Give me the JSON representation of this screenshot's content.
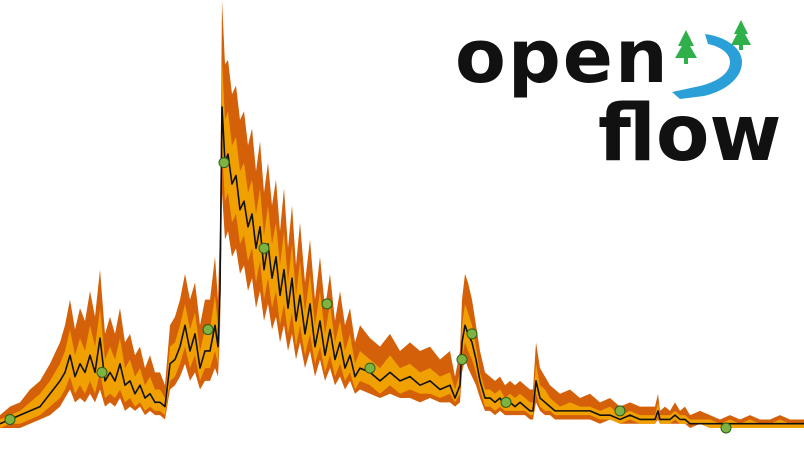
{
  "logo": {
    "line1": "open",
    "line2": "flow",
    "text_color": "#111111",
    "river_color": "#2a9fd8",
    "tree_color": "#2fb04a"
  },
  "chart_data": {
    "type": "area",
    "xlabel": "",
    "ylabel": "",
    "grid": false,
    "legend": "none",
    "ylim": [
      0,
      1
    ],
    "series": [
      {
        "role": "simulation-ensemble-outer",
        "color": "#d4600a",
        "x": [
          0,
          10,
          20,
          30,
          40,
          50,
          60,
          65,
          70,
          75,
          80,
          85,
          90,
          95,
          100,
          105,
          110,
          115,
          120,
          125,
          130,
          135,
          140,
          145,
          150,
          155,
          160,
          165,
          170,
          175,
          180,
          185,
          190,
          195,
          200,
          205,
          210,
          215,
          218,
          220,
          222,
          225,
          228,
          232,
          236,
          240,
          244,
          248,
          252,
          256,
          260,
          264,
          268,
          272,
          276,
          280,
          284,
          288,
          292,
          296,
          300,
          305,
          310,
          315,
          320,
          325,
          330,
          335,
          340,
          345,
          350,
          355,
          360,
          370,
          380,
          390,
          400,
          410,
          420,
          430,
          440,
          450,
          455,
          460,
          462,
          465,
          468,
          472,
          476,
          480,
          485,
          490,
          495,
          500,
          505,
          510,
          515,
          520,
          525,
          530,
          533,
          536,
          540,
          545,
          550,
          555,
          560,
          570,
          580,
          590,
          600,
          610,
          620,
          630,
          640,
          650,
          655,
          658,
          660,
          665,
          670,
          675,
          680,
          685,
          690,
          700,
          710,
          720,
          730,
          740,
          750,
          760,
          770,
          780,
          790,
          800,
          804
        ],
        "upper": [
          0.03,
          0.05,
          0.06,
          0.09,
          0.11,
          0.15,
          0.2,
          0.24,
          0.3,
          0.23,
          0.28,
          0.25,
          0.32,
          0.26,
          0.37,
          0.22,
          0.26,
          0.22,
          0.28,
          0.2,
          0.22,
          0.17,
          0.19,
          0.14,
          0.17,
          0.13,
          0.13,
          0.1,
          0.24,
          0.26,
          0.3,
          0.36,
          0.3,
          0.34,
          0.24,
          0.3,
          0.3,
          0.4,
          0.3,
          0.47,
          1.0,
          0.85,
          0.86,
          0.78,
          0.8,
          0.72,
          0.74,
          0.66,
          0.7,
          0.6,
          0.67,
          0.55,
          0.62,
          0.52,
          0.58,
          0.46,
          0.56,
          0.42,
          0.52,
          0.38,
          0.48,
          0.34,
          0.44,
          0.3,
          0.4,
          0.28,
          0.36,
          0.25,
          0.32,
          0.24,
          0.28,
          0.2,
          0.24,
          0.21,
          0.19,
          0.22,
          0.18,
          0.2,
          0.18,
          0.19,
          0.16,
          0.18,
          0.12,
          0.18,
          0.3,
          0.36,
          0.34,
          0.3,
          0.24,
          0.18,
          0.13,
          0.12,
          0.11,
          0.12,
          0.1,
          0.11,
          0.1,
          0.11,
          0.1,
          0.09,
          0.09,
          0.2,
          0.14,
          0.12,
          0.1,
          0.09,
          0.08,
          0.09,
          0.07,
          0.08,
          0.06,
          0.07,
          0.05,
          0.06,
          0.05,
          0.05,
          0.05,
          0.08,
          0.04,
          0.05,
          0.04,
          0.06,
          0.04,
          0.05,
          0.03,
          0.04,
          0.03,
          0.02,
          0.03,
          0.02,
          0.03,
          0.02,
          0.02,
          0.03,
          0.02,
          0.02,
          0.02
        ],
        "lower": [
          0.0,
          0.0,
          0.0,
          0.01,
          0.02,
          0.03,
          0.05,
          0.07,
          0.09,
          0.06,
          0.07,
          0.06,
          0.08,
          0.06,
          0.09,
          0.05,
          0.06,
          0.05,
          0.07,
          0.04,
          0.05,
          0.04,
          0.05,
          0.03,
          0.04,
          0.03,
          0.03,
          0.02,
          0.09,
          0.1,
          0.12,
          0.15,
          0.11,
          0.13,
          0.09,
          0.11,
          0.11,
          0.14,
          0.12,
          0.22,
          0.55,
          0.44,
          0.46,
          0.4,
          0.42,
          0.36,
          0.38,
          0.32,
          0.35,
          0.28,
          0.32,
          0.25,
          0.29,
          0.23,
          0.26,
          0.2,
          0.24,
          0.18,
          0.22,
          0.16,
          0.2,
          0.14,
          0.18,
          0.12,
          0.16,
          0.11,
          0.14,
          0.1,
          0.12,
          0.09,
          0.11,
          0.08,
          0.09,
          0.08,
          0.07,
          0.08,
          0.07,
          0.07,
          0.06,
          0.07,
          0.06,
          0.06,
          0.05,
          0.06,
          0.13,
          0.16,
          0.14,
          0.12,
          0.1,
          0.07,
          0.04,
          0.04,
          0.03,
          0.04,
          0.03,
          0.03,
          0.03,
          0.03,
          0.03,
          0.02,
          0.02,
          0.06,
          0.04,
          0.03,
          0.03,
          0.02,
          0.02,
          0.02,
          0.02,
          0.02,
          0.01,
          0.02,
          0.01,
          0.01,
          0.01,
          0.01,
          0.01,
          0.02,
          0.01,
          0.01,
          0.01,
          0.01,
          0.01,
          0.01,
          0.0,
          0.01,
          0.0,
          0.0,
          0.0,
          0.0,
          0.0,
          0.0,
          0.0,
          0.0,
          0.0,
          0.0,
          0.0
        ]
      },
      {
        "role": "simulation-ensemble-inner",
        "color": "#f0a000",
        "x": [
          0,
          10,
          20,
          30,
          40,
          50,
          60,
          65,
          70,
          75,
          80,
          85,
          90,
          95,
          100,
          105,
          110,
          115,
          120,
          125,
          130,
          135,
          140,
          145,
          150,
          155,
          160,
          165,
          170,
          175,
          180,
          185,
          190,
          195,
          200,
          205,
          210,
          215,
          218,
          220,
          222,
          225,
          228,
          232,
          236,
          240,
          244,
          248,
          252,
          256,
          260,
          264,
          268,
          272,
          276,
          280,
          284,
          288,
          292,
          296,
          300,
          305,
          310,
          315,
          320,
          325,
          330,
          335,
          340,
          345,
          350,
          355,
          360,
          370,
          380,
          390,
          400,
          410,
          420,
          430,
          440,
          450,
          455,
          460,
          462,
          465,
          468,
          472,
          476,
          480,
          485,
          490,
          495,
          500,
          505,
          510,
          515,
          520,
          525,
          530,
          533,
          536,
          540,
          545,
          550,
          555,
          560,
          570,
          580,
          590,
          600,
          610,
          620,
          630,
          640,
          650,
          655,
          658,
          660,
          665,
          670,
          675,
          680,
          685,
          690,
          700,
          710,
          720,
          730,
          740,
          750,
          760,
          770,
          780,
          790,
          800,
          804
        ],
        "upper": [
          0.02,
          0.03,
          0.04,
          0.06,
          0.08,
          0.11,
          0.15,
          0.18,
          0.23,
          0.17,
          0.21,
          0.18,
          0.24,
          0.19,
          0.28,
          0.16,
          0.19,
          0.16,
          0.21,
          0.14,
          0.16,
          0.12,
          0.14,
          0.1,
          0.12,
          0.09,
          0.09,
          0.07,
          0.19,
          0.2,
          0.24,
          0.29,
          0.23,
          0.27,
          0.18,
          0.23,
          0.23,
          0.31,
          0.24,
          0.38,
          0.86,
          0.72,
          0.74,
          0.66,
          0.68,
          0.6,
          0.62,
          0.55,
          0.58,
          0.5,
          0.56,
          0.45,
          0.52,
          0.43,
          0.48,
          0.38,
          0.46,
          0.34,
          0.43,
          0.31,
          0.39,
          0.27,
          0.36,
          0.24,
          0.32,
          0.22,
          0.29,
          0.2,
          0.25,
          0.18,
          0.22,
          0.15,
          0.18,
          0.16,
          0.14,
          0.17,
          0.14,
          0.15,
          0.13,
          0.14,
          0.12,
          0.13,
          0.09,
          0.13,
          0.24,
          0.29,
          0.27,
          0.24,
          0.19,
          0.13,
          0.09,
          0.09,
          0.08,
          0.09,
          0.07,
          0.08,
          0.07,
          0.08,
          0.07,
          0.06,
          0.06,
          0.15,
          0.1,
          0.09,
          0.07,
          0.06,
          0.05,
          0.06,
          0.05,
          0.05,
          0.04,
          0.05,
          0.03,
          0.04,
          0.03,
          0.03,
          0.03,
          0.06,
          0.03,
          0.03,
          0.03,
          0.04,
          0.03,
          0.03,
          0.02,
          0.02,
          0.02,
          0.01,
          0.02,
          0.01,
          0.02,
          0.01,
          0.01,
          0.02,
          0.01,
          0.01,
          0.01
        ],
        "lower": [
          0.0,
          0.01,
          0.01,
          0.02,
          0.03,
          0.05,
          0.07,
          0.09,
          0.12,
          0.08,
          0.1,
          0.08,
          0.11,
          0.08,
          0.13,
          0.07,
          0.08,
          0.07,
          0.09,
          0.06,
          0.07,
          0.05,
          0.06,
          0.04,
          0.05,
          0.04,
          0.04,
          0.03,
          0.11,
          0.12,
          0.15,
          0.19,
          0.14,
          0.17,
          0.11,
          0.14,
          0.14,
          0.18,
          0.15,
          0.27,
          0.65,
          0.53,
          0.55,
          0.48,
          0.5,
          0.43,
          0.45,
          0.39,
          0.42,
          0.34,
          0.39,
          0.3,
          0.35,
          0.28,
          0.32,
          0.24,
          0.29,
          0.22,
          0.27,
          0.19,
          0.24,
          0.17,
          0.22,
          0.15,
          0.19,
          0.13,
          0.17,
          0.12,
          0.15,
          0.11,
          0.13,
          0.09,
          0.11,
          0.1,
          0.08,
          0.1,
          0.08,
          0.09,
          0.08,
          0.08,
          0.07,
          0.08,
          0.06,
          0.08,
          0.16,
          0.2,
          0.18,
          0.16,
          0.13,
          0.09,
          0.05,
          0.05,
          0.04,
          0.05,
          0.04,
          0.04,
          0.04,
          0.04,
          0.04,
          0.03,
          0.03,
          0.08,
          0.05,
          0.04,
          0.04,
          0.03,
          0.03,
          0.03,
          0.03,
          0.03,
          0.02,
          0.02,
          0.01,
          0.02,
          0.01,
          0.01,
          0.01,
          0.03,
          0.01,
          0.01,
          0.01,
          0.02,
          0.01,
          0.01,
          0.01,
          0.01,
          0.0,
          0.0,
          0.0,
          0.0,
          0.0,
          0.0,
          0.0,
          0.0,
          0.0,
          0.0,
          0.0
        ]
      },
      {
        "role": "simulation-median",
        "color": "#111111",
        "x": [
          0,
          10,
          20,
          30,
          40,
          50,
          60,
          65,
          70,
          75,
          80,
          85,
          90,
          95,
          100,
          105,
          110,
          115,
          120,
          125,
          130,
          135,
          140,
          145,
          150,
          155,
          160,
          165,
          170,
          175,
          180,
          185,
          190,
          195,
          200,
          205,
          210,
          215,
          218,
          220,
          222,
          225,
          228,
          232,
          236,
          240,
          244,
          248,
          252,
          256,
          260,
          264,
          268,
          272,
          276,
          280,
          284,
          288,
          292,
          296,
          300,
          305,
          310,
          315,
          320,
          325,
          330,
          335,
          340,
          345,
          350,
          355,
          360,
          370,
          380,
          390,
          400,
          410,
          420,
          430,
          440,
          450,
          455,
          460,
          462,
          465,
          468,
          472,
          476,
          480,
          485,
          490,
          495,
          500,
          505,
          510,
          515,
          520,
          525,
          530,
          533,
          536,
          540,
          545,
          550,
          555,
          560,
          570,
          580,
          590,
          600,
          610,
          620,
          630,
          640,
          650,
          655,
          658,
          660,
          665,
          670,
          675,
          680,
          685,
          690,
          700,
          710,
          720,
          730,
          740,
          750,
          760,
          770,
          780,
          790,
          800,
          804
        ],
        "values": [
          0.01,
          0.02,
          0.03,
          0.04,
          0.05,
          0.08,
          0.11,
          0.13,
          0.17,
          0.12,
          0.15,
          0.13,
          0.17,
          0.13,
          0.21,
          0.11,
          0.13,
          0.11,
          0.15,
          0.1,
          0.11,
          0.08,
          0.1,
          0.07,
          0.08,
          0.06,
          0.06,
          0.05,
          0.15,
          0.16,
          0.19,
          0.24,
          0.18,
          0.22,
          0.14,
          0.18,
          0.18,
          0.24,
          0.19,
          0.32,
          0.75,
          0.62,
          0.64,
          0.57,
          0.59,
          0.51,
          0.53,
          0.47,
          0.5,
          0.42,
          0.47,
          0.37,
          0.43,
          0.35,
          0.4,
          0.31,
          0.37,
          0.28,
          0.35,
          0.25,
          0.31,
          0.22,
          0.29,
          0.19,
          0.25,
          0.17,
          0.23,
          0.16,
          0.2,
          0.14,
          0.17,
          0.12,
          0.14,
          0.13,
          0.11,
          0.13,
          0.11,
          0.12,
          0.1,
          0.11,
          0.09,
          0.1,
          0.07,
          0.1,
          0.2,
          0.24,
          0.22,
          0.2,
          0.16,
          0.11,
          0.07,
          0.07,
          0.06,
          0.07,
          0.05,
          0.06,
          0.05,
          0.06,
          0.05,
          0.04,
          0.04,
          0.11,
          0.07,
          0.06,
          0.05,
          0.04,
          0.04,
          0.04,
          0.04,
          0.04,
          0.03,
          0.03,
          0.02,
          0.03,
          0.02,
          0.02,
          0.02,
          0.04,
          0.02,
          0.02,
          0.02,
          0.03,
          0.02,
          0.02,
          0.01,
          0.01,
          0.01,
          0.01,
          0.01,
          0.01,
          0.01,
          0.01,
          0.01,
          0.01,
          0.01,
          0.01,
          0.01
        ]
      },
      {
        "role": "observations",
        "color": "#7cb342",
        "x": [
          10,
          102,
          208,
          224,
          264,
          327,
          370,
          462,
          472,
          506,
          620,
          726
        ],
        "values": [
          0.02,
          0.13,
          0.23,
          0.62,
          0.42,
          0.29,
          0.14,
          0.16,
          0.22,
          0.06,
          0.04,
          0.0
        ]
      }
    ]
  }
}
